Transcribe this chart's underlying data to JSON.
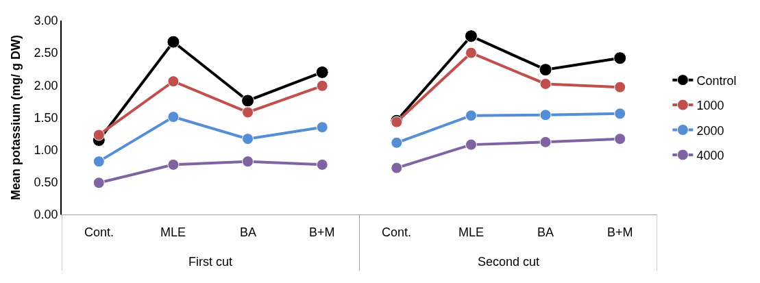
{
  "chart_data": {
    "type": "line",
    "ylabel": "Mean potassium (mg/ g DW)",
    "categories": [
      "Cont.",
      "MLE",
      "BA",
      "B+M",
      "Cont.",
      "MLE",
      "BA",
      "B+M"
    ],
    "annotations": [
      "First cut",
      "Second cut"
    ],
    "series": [
      {
        "name": "Control",
        "color": "#000000",
        "values": [
          1.15,
          2.67,
          1.76,
          2.2,
          1.45,
          2.76,
          2.24,
          2.42
        ]
      },
      {
        "name": "1000",
        "color": "#c0504d",
        "values": [
          1.23,
          2.06,
          1.58,
          1.99,
          1.43,
          2.5,
          2.02,
          1.97
        ]
      },
      {
        "name": "2000",
        "color": "#558ed5",
        "values": [
          0.82,
          1.51,
          1.17,
          1.35,
          1.11,
          1.53,
          1.54,
          1.56
        ]
      },
      {
        "name": "4000",
        "color": "#8064a2",
        "values": [
          0.49,
          0.77,
          0.82,
          0.77,
          0.72,
          1.08,
          1.12,
          1.17
        ]
      }
    ],
    "ylim": [
      0,
      3
    ],
    "yticks": [
      {
        "value": 0,
        "label": "0.00"
      },
      {
        "value": 0.5,
        "label": "0.50"
      },
      {
        "value": 1,
        "label": "1.00"
      },
      {
        "value": 1.5,
        "label": "1.50"
      },
      {
        "value": 2,
        "label": "2.00"
      },
      {
        "value": 2.5,
        "label": "2.50"
      },
      {
        "value": 3,
        "label": "3.00"
      }
    ],
    "legend": "right",
    "marker": "circle",
    "line_style": "solid"
  }
}
